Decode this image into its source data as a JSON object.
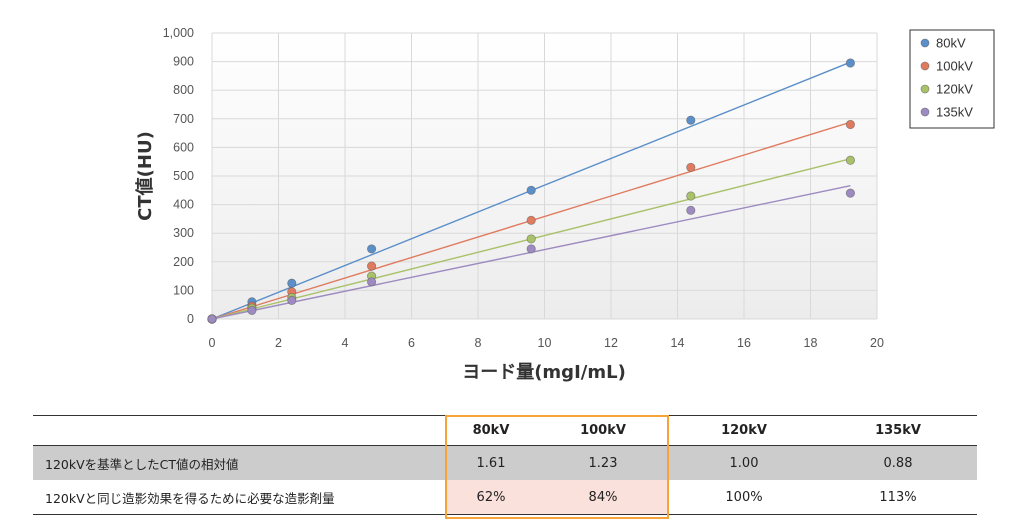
{
  "chart_data": {
    "type": "scatter",
    "xlabel": "ヨード量(mgI/mL)",
    "ylabel": "CT値(HU)",
    "xlim": [
      0,
      20
    ],
    "ylim": [
      0,
      1000
    ],
    "x_ticks": [
      "0",
      "2",
      "4",
      "6",
      "8",
      "10",
      "12",
      "14",
      "16",
      "18",
      "20"
    ],
    "y_ticks": [
      "0",
      "100",
      "200",
      "300",
      "400",
      "500",
      "600",
      "700",
      "800",
      "900",
      "1,000"
    ],
    "grid": true,
    "legend_position": "top-right",
    "trendlines": "linear",
    "x": [
      0,
      1.2,
      2.4,
      4.8,
      9.6,
      14.4,
      19.2
    ],
    "series": [
      {
        "name": "80kV",
        "color": "#5b8fc9",
        "values": [
          0,
          60,
          125,
          245,
          450,
          695,
          895
        ],
        "fit_end": 898
      },
      {
        "name": "100kV",
        "color": "#e07b5f",
        "values": [
          0,
          45,
          95,
          185,
          345,
          530,
          680
        ],
        "fit_end": 688
      },
      {
        "name": "120kV",
        "color": "#a9c26a",
        "values": [
          0,
          38,
          75,
          150,
          280,
          430,
          555
        ],
        "fit_end": 560
      },
      {
        "name": "135kV",
        "color": "#9d8ac0",
        "values": [
          0,
          30,
          65,
          130,
          245,
          380,
          440
        ],
        "fit_end": 466
      }
    ]
  },
  "table": {
    "headers": [
      "",
      "80kV",
      "100kV",
      "120kV",
      "135kV"
    ],
    "rows": [
      {
        "label": "120kVを基準としたCT値の相対値",
        "cells": [
          "1.61",
          "1.23",
          "1.00",
          "0.88"
        ]
      },
      {
        "label": "120kVと同じ造影効果を得るために必要な造影剤量",
        "cells": [
          "62%",
          "84%",
          "100%",
          "113%"
        ]
      }
    ],
    "highlight_color": "#f7a33a",
    "highlight_fill": "#fbe1dc"
  }
}
